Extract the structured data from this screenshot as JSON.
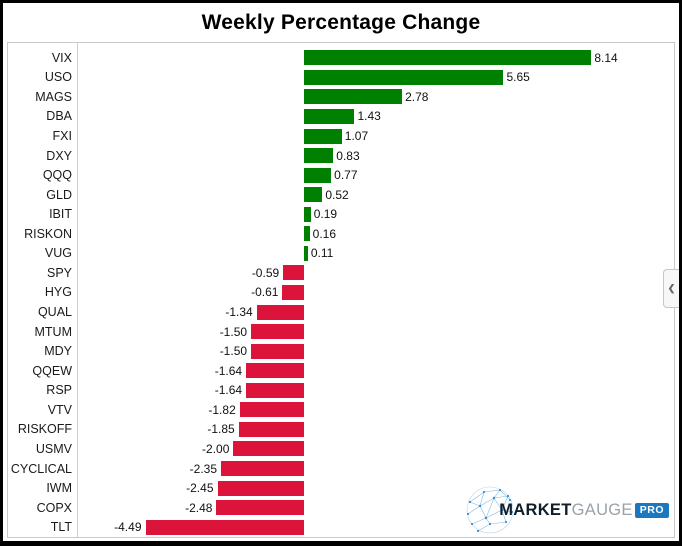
{
  "window": {
    "title": "Weekly Percentage Change"
  },
  "chart_data": {
    "type": "bar",
    "orientation": "horizontal",
    "title": "Weekly Percentage Change",
    "categories": [
      "VIX",
      "USO",
      "MAGS",
      "DBA",
      "FXI",
      "DXY",
      "QQQ",
      "GLD",
      "IBIT",
      "RISKON",
      "VUG",
      "SPY",
      "HYG",
      "QUAL",
      "MTUM",
      "MDY",
      "QQEW",
      "RSP",
      "VTV",
      "RISKOFF",
      "USMV",
      "CYCLICAL",
      "IWM",
      "COPX",
      "TLT"
    ],
    "values": [
      8.14,
      5.65,
      2.78,
      1.43,
      1.07,
      0.83,
      0.77,
      0.52,
      0.19,
      0.16,
      0.11,
      -0.59,
      -0.61,
      -1.34,
      -1.5,
      -1.5,
      -1.64,
      -1.64,
      -1.82,
      -1.85,
      -2.0,
      -2.35,
      -2.45,
      -2.48,
      -4.49
    ],
    "value_labels": [
      "8.14",
      "5.65",
      "2.78",
      "1.43",
      "1.07",
      "0.83",
      "0.77",
      "0.52",
      "0.19",
      "0.16",
      "0.11",
      "-0.59",
      "-0.61",
      "-1.34",
      "-1.50",
      "-1.50",
      "-1.64",
      "-1.64",
      "-1.82",
      "-1.85",
      "-2.00",
      "-2.35",
      "-2.45",
      "-2.48",
      "-4.49"
    ],
    "positive_color": "#008000",
    "negative_color": "#dc143c",
    "axis_line_color": "#cfcfcf",
    "grid": false,
    "legend": false,
    "xlim_approx": [
      -6.3,
      10.5
    ]
  },
  "side_panel_toggle": {
    "icon": "chevron-left",
    "glyph": "❮"
  },
  "logo": {
    "market": "MARKET",
    "gauge": "GAUGE",
    "pro": "PRO",
    "brand_blue": "#1b78be",
    "dark_text_color": "#0f1e2a",
    "gray_text_color": "#9aa2a9",
    "globe_blue": "#5aa0d8"
  }
}
